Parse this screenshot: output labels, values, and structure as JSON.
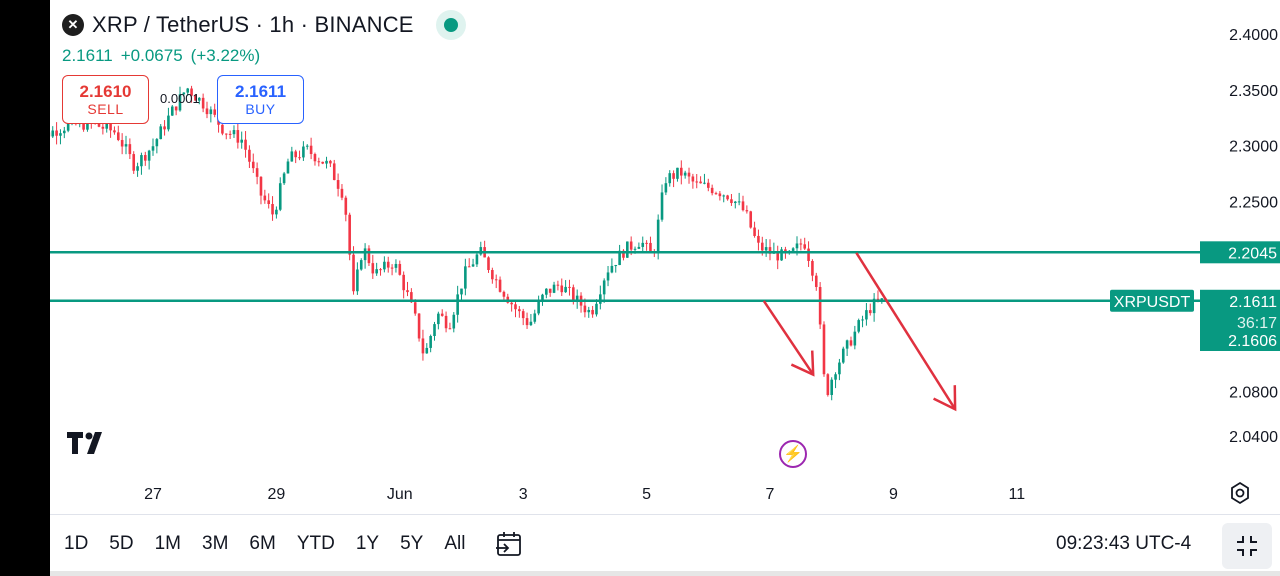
{
  "header": {
    "title": "XRP / TetherUS · 1h · BINANCE",
    "last_price": "2.1611",
    "change": "+0.0675",
    "change_pct": "(+3.22%)"
  },
  "trade": {
    "sell_price": "2.1610",
    "sell_label": "SELL",
    "buy_price": "2.1611",
    "buy_label": "BUY",
    "spread": "0.0001"
  },
  "bottom_bar": {
    "periods": [
      "1D",
      "5D",
      "1M",
      "3M",
      "6M",
      "YTD",
      "1Y",
      "5Y",
      "All"
    ],
    "clock": "09:23:43 UTC-4"
  },
  "icons": {
    "logo": "xrp-logo-icon",
    "status": "market-open-dot-icon",
    "tv": "tradingview-logo-icon",
    "lightning": "lightning-icon",
    "settings": "settings-icon",
    "calendar": "calendar-range-icon",
    "collapse": "collapse-icon"
  },
  "colors": {
    "up": "#089981",
    "down": "#f23645",
    "level_line": "#089981",
    "arrow": "#e0313f"
  },
  "chart_data": {
    "type": "candlestick",
    "symbol_label": "XRPUSDT",
    "y_ticks": [
      "2.4000",
      "2.3500",
      "2.3000",
      "2.2500",
      "2.0800",
      "2.0400"
    ],
    "ylim": [
      2.02,
      2.41
    ],
    "x_ticks": [
      {
        "label": "27",
        "x": 27
      },
      {
        "label": "29",
        "x": 29
      },
      {
        "label": "Jun",
        "x": 31
      },
      {
        "label": "3",
        "x": 33
      },
      {
        "label": "5",
        "x": 35
      },
      {
        "label": "7",
        "x": 37
      },
      {
        "label": "9",
        "x": 39
      },
      {
        "label": "11",
        "x": 41
      }
    ],
    "xlim": [
      25.0,
      44.3
    ],
    "levels": [
      {
        "value": 2.2045,
        "label": "2.2045"
      },
      {
        "value": 2.1611,
        "label": "2.1611"
      }
    ],
    "last_price_tag": {
      "value": 2.1611,
      "label": "2.1611",
      "countdown": "36:17"
    },
    "bid_tag": {
      "value": 2.1606,
      "label": "2.1606"
    },
    "arrows": [
      {
        "from": [
          36.9,
          2.161
        ],
        "to": [
          37.7,
          2.095
        ]
      },
      {
        "from": [
          38.4,
          2.204
        ],
        "to": [
          40.0,
          2.064
        ]
      }
    ],
    "path_points": [
      [
        25.0,
        2.29
      ],
      [
        25.25,
        2.31
      ],
      [
        25.6,
        2.318
      ],
      [
        26.0,
        2.32
      ],
      [
        26.4,
        2.312
      ],
      [
        26.7,
        2.282
      ],
      [
        27.0,
        2.3
      ],
      [
        27.3,
        2.33
      ],
      [
        27.55,
        2.352
      ],
      [
        27.85,
        2.336
      ],
      [
        28.15,
        2.314
      ],
      [
        28.45,
        2.305
      ],
      [
        28.75,
        2.256
      ],
      [
        28.95,
        2.238
      ],
      [
        29.2,
        2.288
      ],
      [
        29.5,
        2.296
      ],
      [
        29.85,
        2.282
      ],
      [
        30.1,
        2.255
      ],
      [
        30.25,
        2.165
      ],
      [
        30.4,
        2.21
      ],
      [
        30.6,
        2.185
      ],
      [
        30.9,
        2.196
      ],
      [
        31.1,
        2.17
      ],
      [
        31.25,
        2.145
      ],
      [
        31.4,
        2.11
      ],
      [
        31.6,
        2.15
      ],
      [
        31.8,
        2.14
      ],
      [
        32.05,
        2.185
      ],
      [
        32.3,
        2.205
      ],
      [
        32.6,
        2.176
      ],
      [
        32.9,
        2.152
      ],
      [
        33.1,
        2.14
      ],
      [
        33.35,
        2.168
      ],
      [
        33.6,
        2.176
      ],
      [
        33.85,
        2.162
      ],
      [
        34.1,
        2.15
      ],
      [
        34.35,
        2.188
      ],
      [
        34.65,
        2.207
      ],
      [
        34.9,
        2.215
      ],
      [
        35.1,
        2.2
      ],
      [
        35.3,
        2.27
      ],
      [
        35.55,
        2.276
      ],
      [
        35.8,
        2.265
      ],
      [
        36.05,
        2.262
      ],
      [
        36.35,
        2.255
      ],
      [
        36.6,
        2.24
      ],
      [
        36.8,
        2.21
      ],
      [
        37.05,
        2.203
      ],
      [
        37.3,
        2.2
      ],
      [
        37.55,
        2.215
      ],
      [
        37.75,
        2.178
      ],
      [
        37.9,
        2.075
      ],
      [
        38.05,
        2.1
      ],
      [
        38.25,
        2.12
      ],
      [
        38.45,
        2.14
      ],
      [
        38.65,
        2.157
      ],
      [
        38.85,
        2.161
      ]
    ]
  }
}
